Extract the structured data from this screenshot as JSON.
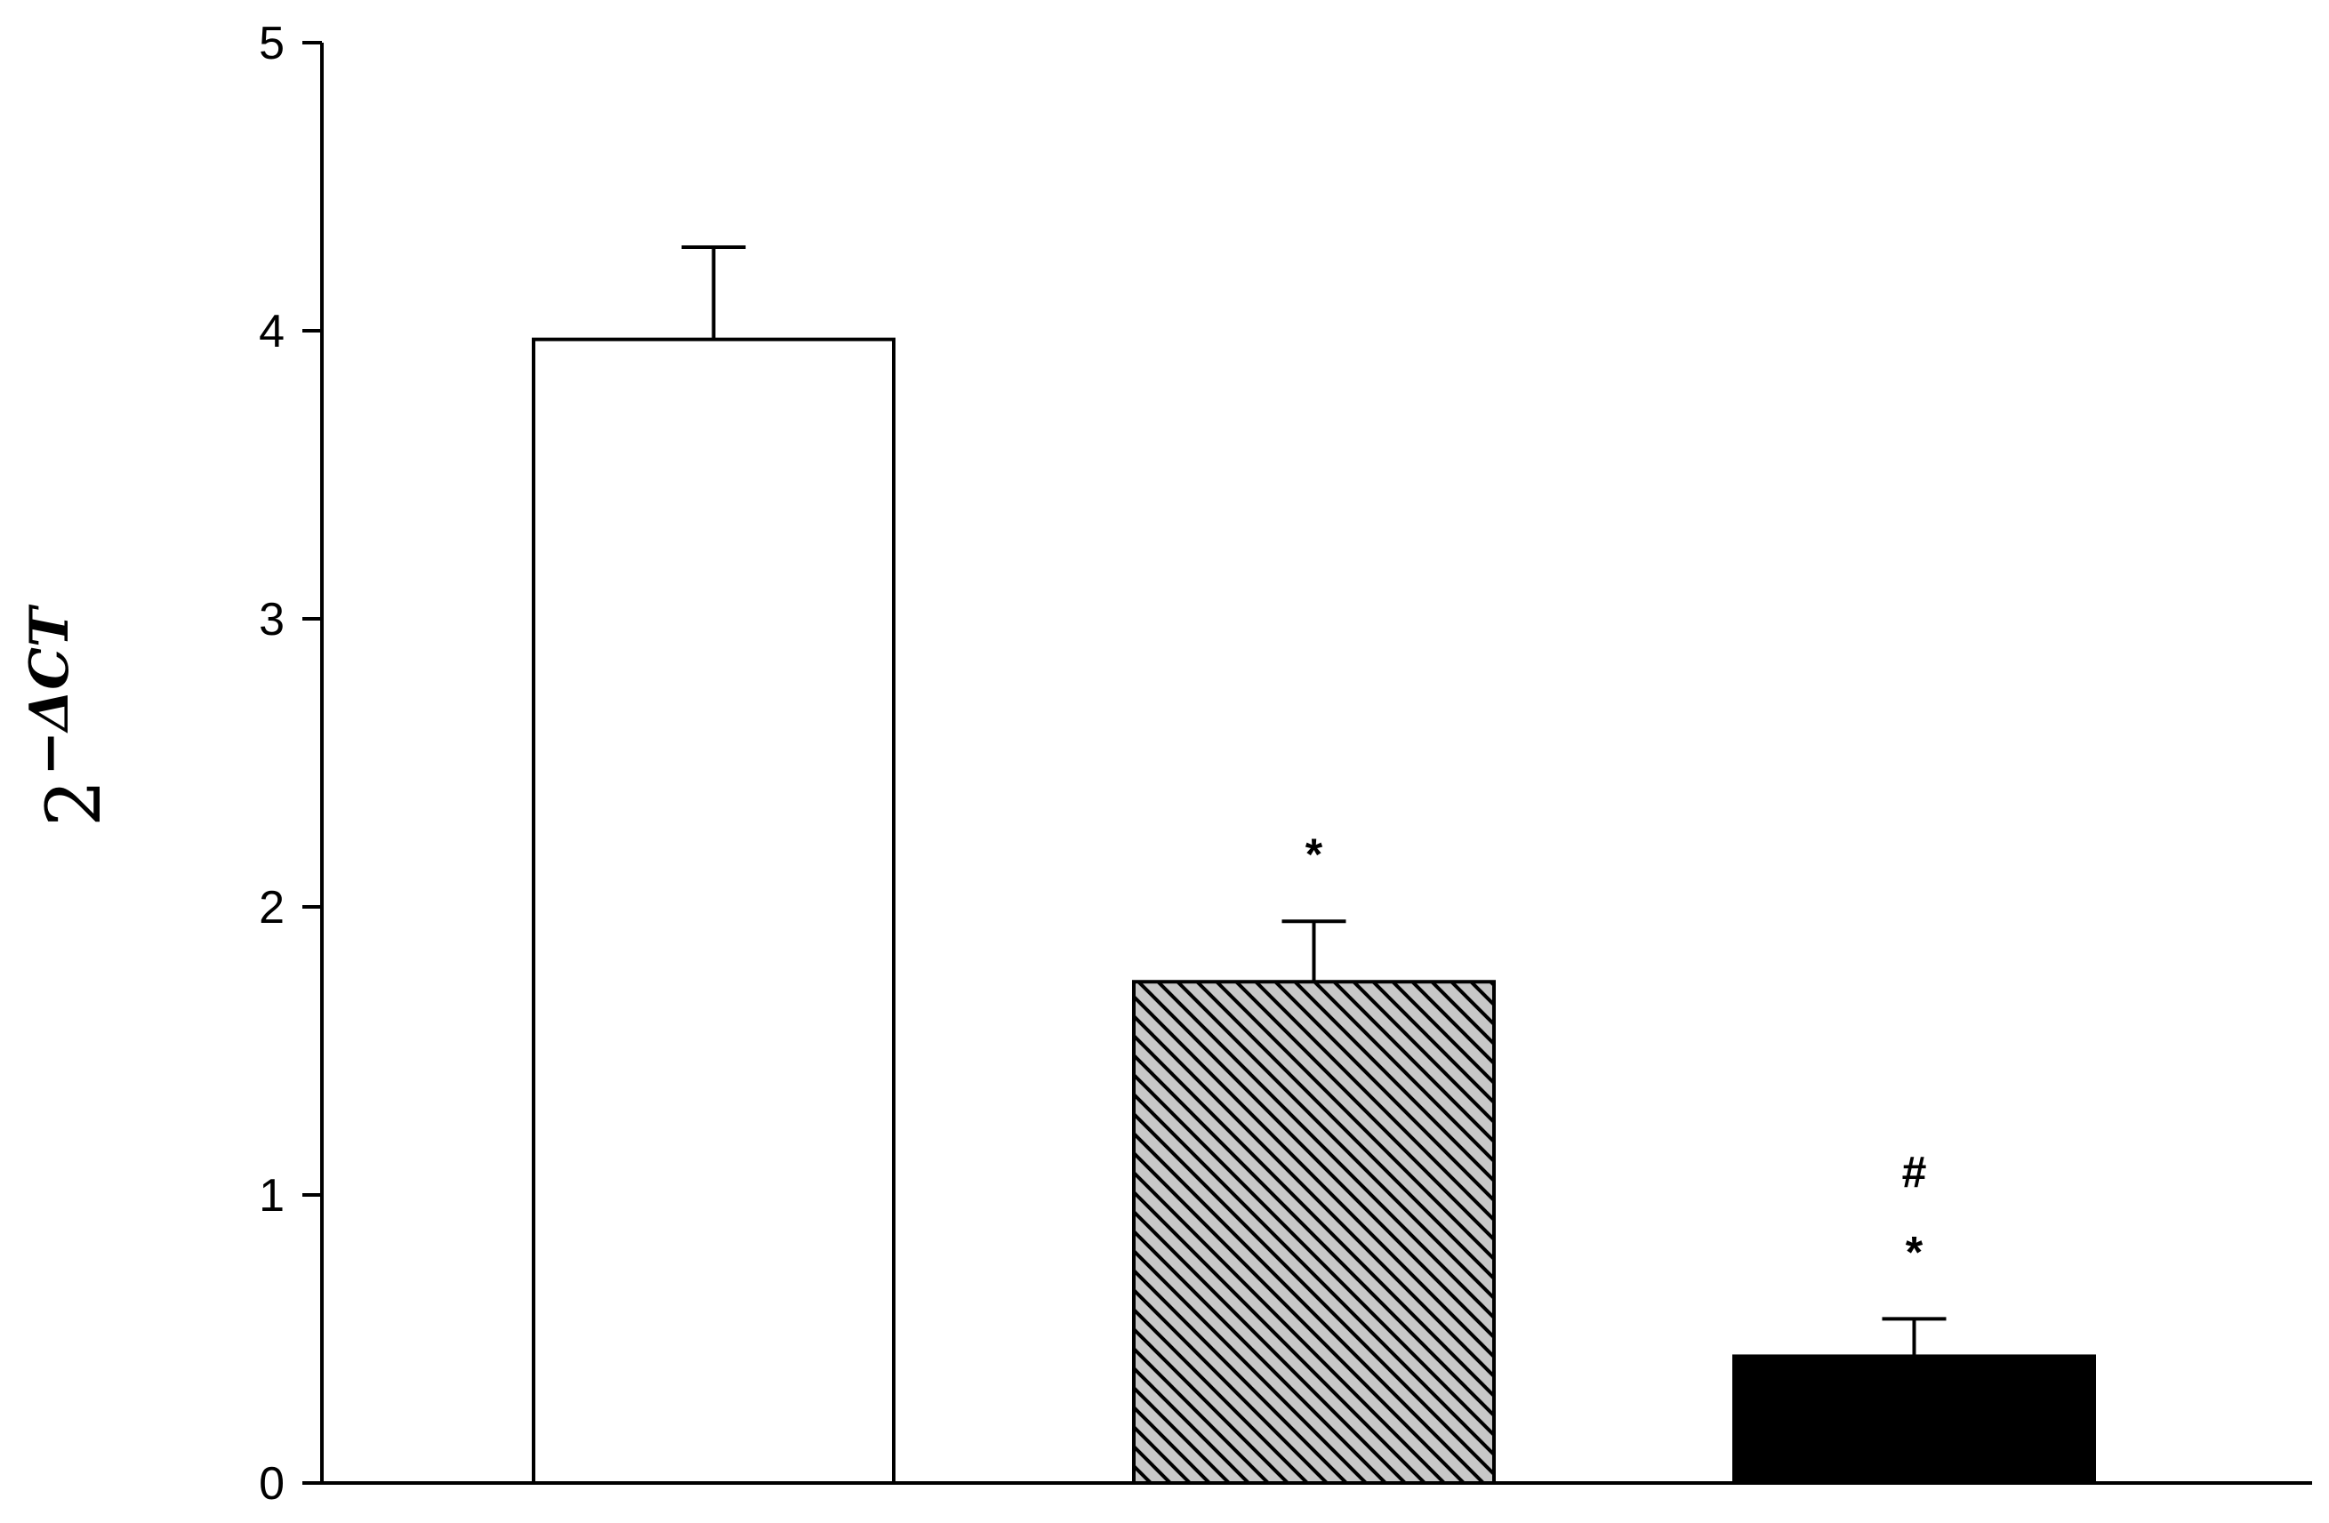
{
  "chart_data": {
    "type": "bar",
    "title": "",
    "xlabel": "",
    "ylabel": {
      "base": "2",
      "exponent": "−ΔCT"
    },
    "ylim": [
      0,
      5
    ],
    "yticks": [
      "0",
      "1",
      "2",
      "3",
      "4",
      "5"
    ],
    "categories": [
      "",
      "",
      ""
    ],
    "values": [
      3.97,
      1.74,
      0.44
    ],
    "errors": [
      0.32,
      0.21,
      0.13
    ],
    "fills": [
      "white",
      "hatched",
      "black"
    ],
    "colors": {
      "bar_white": "#ffffff",
      "bar_hatch_bg": "#c8c8c8",
      "bar_hatch_line": "#000000",
      "bar_black": "#000000",
      "axis": "#000000"
    },
    "annotations": [
      {
        "bar": 1,
        "lines": [
          "*"
        ]
      },
      {
        "bar": 2,
        "lines": [
          "#",
          "*"
        ]
      }
    ],
    "grid": false,
    "legend": "none"
  }
}
